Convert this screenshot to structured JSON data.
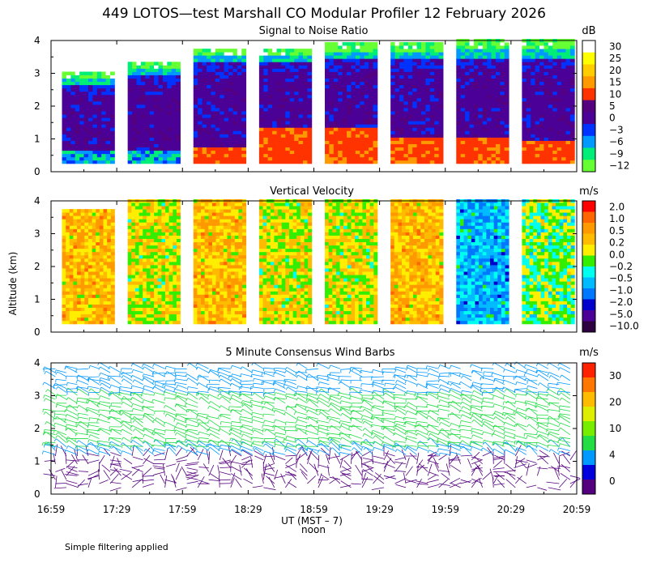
{
  "title": "449 LOTOS—test Marshall CO Modular Profiler 12 February 2026",
  "y_axis_label": "Altitude (km)",
  "x_axis_label": "UT (MST – 7)",
  "x_axis_sublabel": "noon",
  "footer_note": "Simple filtering applied",
  "x_ticks": [
    "16:59",
    "17:29",
    "17:59",
    "18:29",
    "18:59",
    "19:29",
    "19:59",
    "20:29",
    "20:59"
  ],
  "y_ticks": [
    "0",
    "1",
    "2",
    "3",
    "4"
  ],
  "chart_data": [
    {
      "type": "heatmap",
      "title": "Signal to Noise Ratio",
      "ylabel": "Altitude (km)",
      "ylim": [
        0,
        4
      ],
      "colorbar_unit": "dB",
      "colorbar_labels": [
        "30",
        "25",
        "20",
        "15",
        "10",
        "5",
        "0",
        "−3",
        "−6",
        "−9",
        "−12"
      ],
      "colorbar_colors": [
        "#ffffff",
        "#ffff00",
        "#ffcc00",
        "#ff9900",
        "#ff3300",
        "#55007f",
        "#4b0096",
        "#0033ff",
        "#0099ff",
        "#00ee77",
        "#66ff33"
      ],
      "time_blocks": [
        {
          "start": "17:04",
          "end": "17:28",
          "lowest_km": 0.25,
          "top_km": 3.0,
          "strong_echo_top_km": 0.0
        },
        {
          "start": "17:34",
          "end": "17:58",
          "lowest_km": 0.25,
          "top_km": 3.4,
          "strong_echo_top_km": 0.0
        },
        {
          "start": "18:04",
          "end": "18:28",
          "lowest_km": 0.25,
          "top_km": 3.8,
          "strong_echo_top_km": 0.7
        },
        {
          "start": "18:34",
          "end": "18:58",
          "lowest_km": 0.25,
          "top_km": 3.8,
          "strong_echo_top_km": 1.3
        },
        {
          "start": "19:04",
          "end": "19:28",
          "lowest_km": 0.25,
          "top_km": 3.9,
          "strong_echo_top_km": 1.3
        },
        {
          "start": "19:34",
          "end": "19:58",
          "lowest_km": 0.25,
          "top_km": 3.9,
          "strong_echo_top_km": 1.0
        },
        {
          "start": "20:04",
          "end": "20:28",
          "lowest_km": 0.25,
          "top_km": 4.0,
          "strong_echo_top_km": 1.0
        },
        {
          "start": "20:34",
          "end": "20:58",
          "lowest_km": 0.25,
          "top_km": 4.0,
          "strong_echo_top_km": 0.9
        }
      ]
    },
    {
      "type": "heatmap",
      "title": "Vertical Velocity",
      "ylabel": "Altitude (km)",
      "ylim": [
        0,
        4
      ],
      "colorbar_unit": "m/s",
      "colorbar_labels": [
        "2.0",
        "1.0",
        "0.5",
        "0.2",
        "0.0",
        "−0.2",
        "−0.5",
        "−1.0",
        "−2.0",
        "−5.0",
        "−10.0"
      ],
      "colorbar_colors": [
        "#ff0000",
        "#ff6600",
        "#ff9900",
        "#ffbb00",
        "#ffee00",
        "#33ee00",
        "#00ffee",
        "#00bbff",
        "#0077ff",
        "#0000cc",
        "#4b0096",
        "#2d0040"
      ],
      "time_blocks": [
        {
          "start": "17:04",
          "end": "17:28",
          "lowest_km": 0.25,
          "top_km": 3.8,
          "dominant": "0.2"
        },
        {
          "start": "17:34",
          "end": "17:58",
          "lowest_km": 0.25,
          "top_km": 4.0,
          "dominant": "0.0"
        },
        {
          "start": "18:04",
          "end": "18:28",
          "lowest_km": 0.25,
          "top_km": 4.0,
          "dominant": "0.2"
        },
        {
          "start": "18:34",
          "end": "18:58",
          "lowest_km": 0.25,
          "top_km": 4.0,
          "dominant": "0.0"
        },
        {
          "start": "19:04",
          "end": "19:28",
          "lowest_km": 0.25,
          "top_km": 4.0,
          "dominant": "0.0"
        },
        {
          "start": "19:34",
          "end": "19:58",
          "lowest_km": 0.25,
          "top_km": 4.0,
          "dominant": "0.2"
        },
        {
          "start": "20:04",
          "end": "20:28",
          "lowest_km": 0.25,
          "top_km": 4.0,
          "dominant": "−1.0"
        },
        {
          "start": "20:34",
          "end": "20:58",
          "lowest_km": 0.25,
          "top_km": 4.0,
          "dominant": "−0.2"
        }
      ]
    },
    {
      "type": "scatter",
      "title": "5 Minute Consensus Wind Barbs",
      "ylabel": "Altitude (km)",
      "ylim": [
        0,
        4
      ],
      "colorbar_unit": "m/s",
      "colorbar_labels": [
        "30",
        "20",
        "10",
        "4",
        "0"
      ],
      "colorbar_colors": [
        "#ff2200",
        "#ff7700",
        "#ffbb00",
        "#ddee00",
        "#77ee00",
        "#22dd44",
        "#0099ff",
        "#0000dd",
        "#55007f"
      ],
      "profile_interval_min": 5,
      "gate_spacing_km": 0.1,
      "barb_layers": [
        {
          "bottom_km": 0.2,
          "top_km": 1.2,
          "speed_ms": 1,
          "color": "#55007f",
          "dir_deg": 0
        },
        {
          "bottom_km": 1.2,
          "top_km": 1.45,
          "speed_ms": 5,
          "color": "#0099ff",
          "dir_deg": 300
        },
        {
          "bottom_km": 1.45,
          "top_km": 3.1,
          "speed_ms": 9,
          "color": "#22dd44",
          "dir_deg": 290
        },
        {
          "bottom_km": 3.1,
          "top_km": 3.9,
          "speed_ms": 5,
          "color": "#0099ff",
          "dir_deg": 285
        }
      ]
    }
  ]
}
